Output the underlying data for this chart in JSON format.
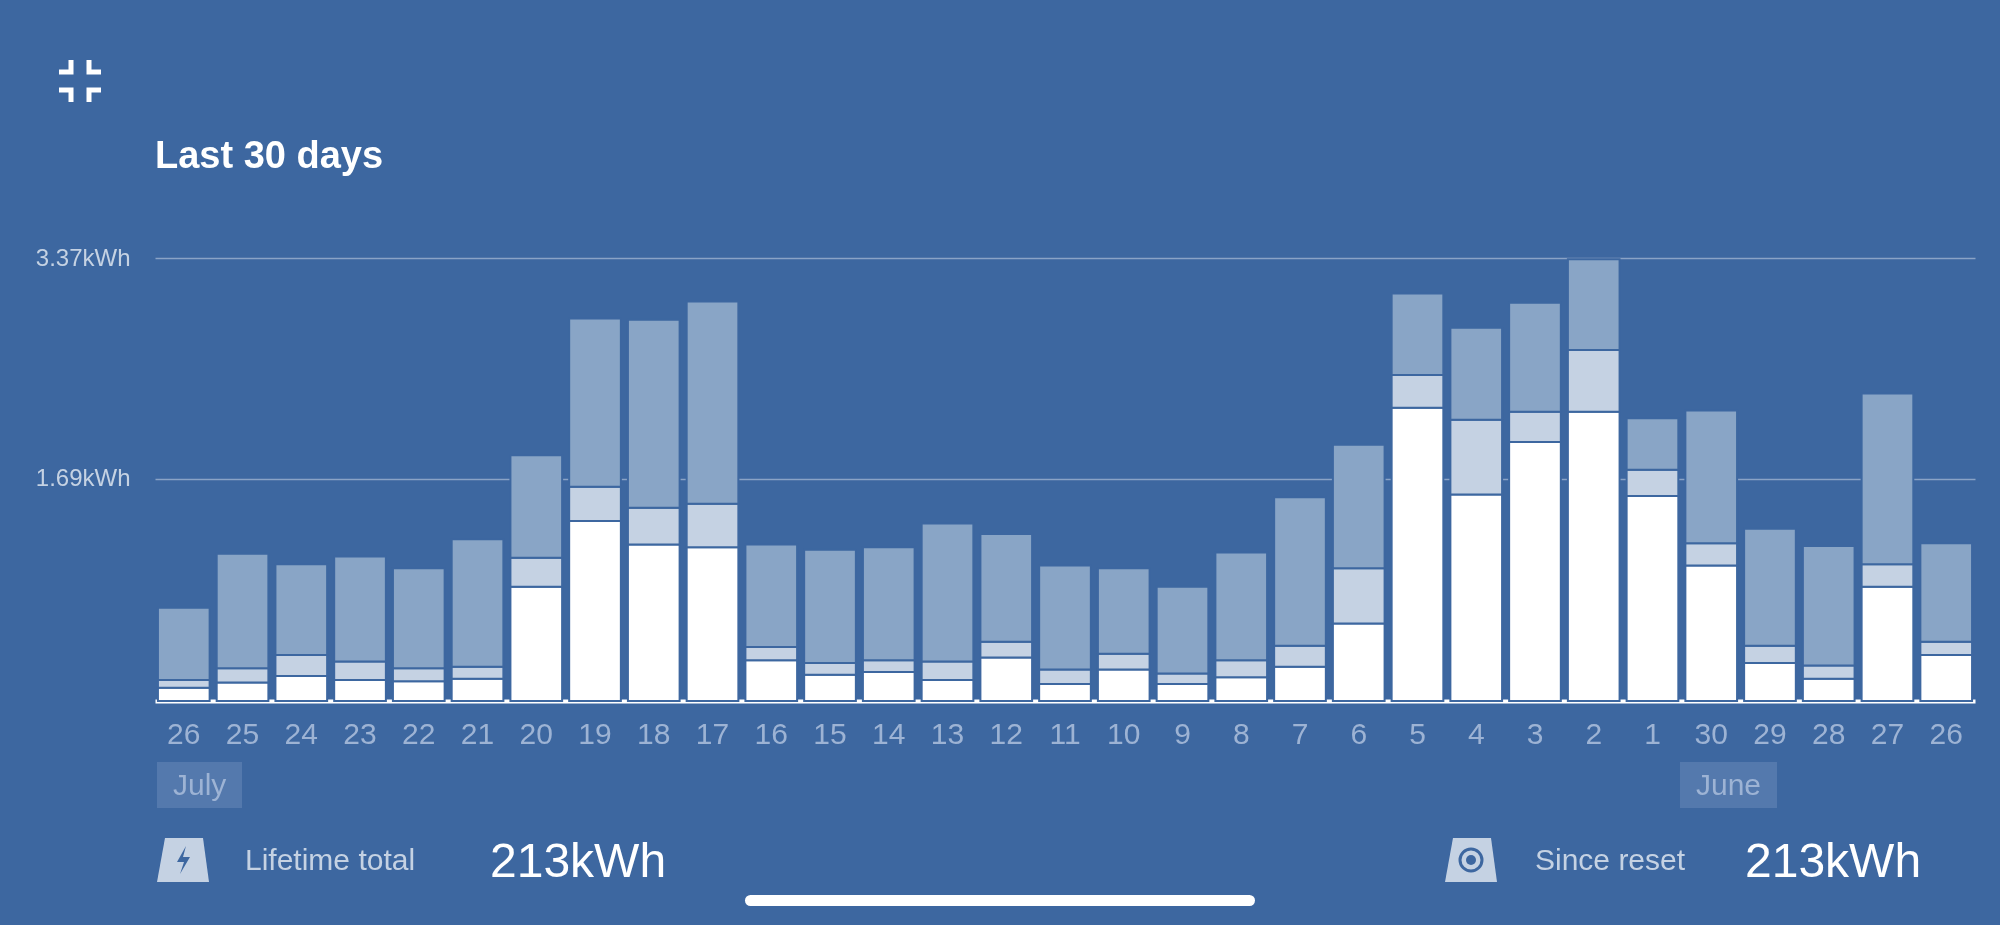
{
  "chart_data": {
    "type": "bar",
    "title": "Last 30 days",
    "stacked": true,
    "grid": "y",
    "legend": false,
    "categories": [
      "26",
      "25",
      "24",
      "23",
      "22",
      "21",
      "20",
      "19",
      "18",
      "17",
      "16",
      "15",
      "14",
      "13",
      "12",
      "11",
      "10",
      "9",
      "8",
      "7",
      "6",
      "5",
      "4",
      "3",
      "2",
      "1",
      "30",
      "29",
      "28",
      "27",
      "26"
    ],
    "series": [
      {
        "color": "#ffffff",
        "values": [
          0.1,
          0.14,
          0.19,
          0.16,
          0.15,
          0.17,
          0.87,
          1.37,
          1.19,
          1.17,
          0.31,
          0.2,
          0.22,
          0.16,
          0.33,
          0.13,
          0.24,
          0.13,
          0.18,
          0.26,
          0.59,
          2.23,
          1.57,
          1.97,
          2.2,
          1.56,
          1.03,
          0.29,
          0.17,
          0.87,
          0.35
        ]
      },
      {
        "color": "#c5d2e3",
        "values": [
          0.06,
          0.11,
          0.16,
          0.14,
          0.1,
          0.09,
          0.22,
          0.26,
          0.28,
          0.33,
          0.1,
          0.09,
          0.09,
          0.14,
          0.12,
          0.11,
          0.12,
          0.08,
          0.13,
          0.16,
          0.42,
          0.25,
          0.57,
          0.23,
          0.47,
          0.2,
          0.17,
          0.13,
          0.1,
          0.17,
          0.1
        ]
      },
      {
        "color": "#89a5c6",
        "values": [
          0.55,
          0.87,
          0.69,
          0.8,
          0.76,
          0.97,
          0.78,
          1.28,
          1.43,
          1.54,
          0.78,
          0.86,
          0.86,
          1.05,
          0.82,
          0.79,
          0.65,
          0.66,
          0.82,
          1.13,
          0.94,
          0.62,
          0.7,
          0.83,
          0.69,
          0.39,
          1.01,
          0.89,
          0.91,
          1.3,
          0.75
        ]
      }
    ],
    "ylim": [
      0,
      3.37
    ],
    "yticks": [
      {
        "value": 1.69,
        "label": "1.69kWh"
      },
      {
        "value": 3.37,
        "label": "3.37kWh"
      }
    ],
    "annotations": [
      "July",
      "June",
      "Lifetime total",
      "213kWh",
      "Since reset",
      "213kWh"
    ]
  }
}
